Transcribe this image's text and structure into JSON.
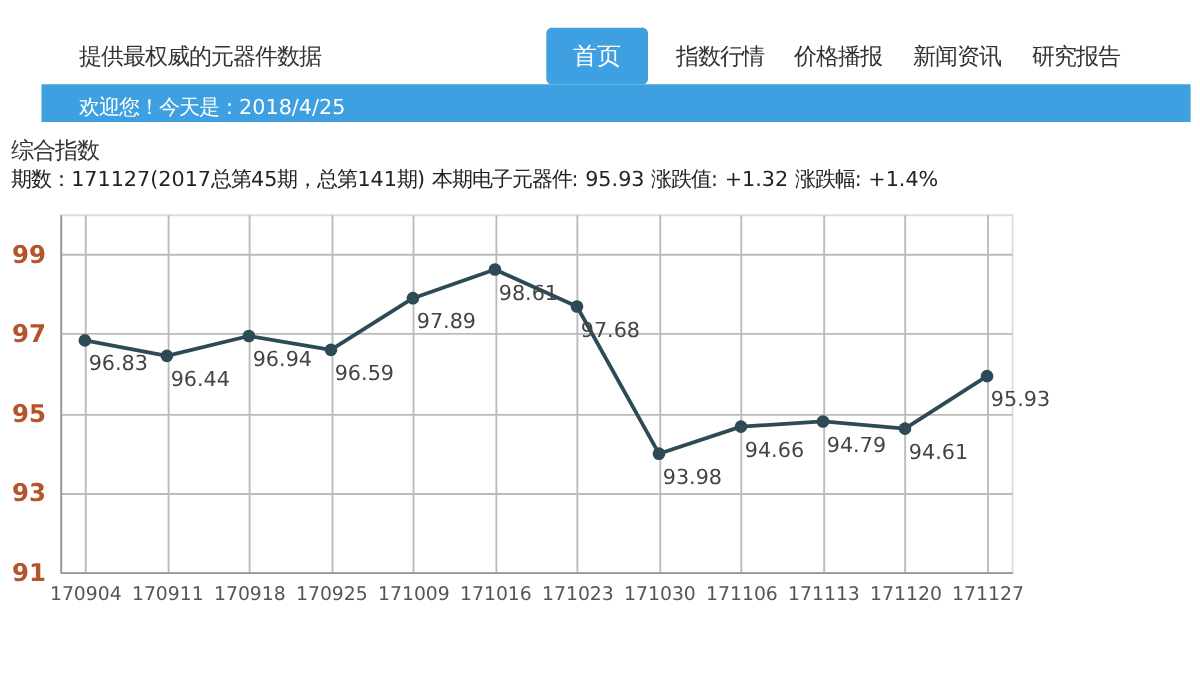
{
  "chart_data": {
    "type": "line",
    "title": "综合指数",
    "subtitle": "期数：171127(2017总第45期，总第141期) 本期电子元器件: 95.93  涨跌值: +1.32  涨跌幅: +1.4%",
    "annotations": [
      "提供最权威的元器件数据",
      "首页",
      "指数行情",
      "价格播报",
      "新闻资讯",
      "研究报告",
      "欢迎您！今天是：2018/4/25"
    ],
    "categories": [
      "170904",
      "170911",
      "170918",
      "170925",
      "171009",
      "171016",
      "171023",
      "171030",
      "171106",
      "171113",
      "171120",
      "171127"
    ],
    "series": [
      {
        "color": "#2e4a57",
        "values": [
          96.83,
          96.44,
          96.94,
          96.59,
          97.89,
          98.61,
          97.68,
          93.98,
          94.66,
          94.79,
          94.61,
          95.93
        ]
      }
    ],
    "ylim": [
      91,
      100
    ],
    "yticks": [
      91,
      93,
      95,
      97,
      99
    ],
    "grid": true,
    "marker": "circle",
    "line_style": "solid",
    "data_labels": true
  }
}
